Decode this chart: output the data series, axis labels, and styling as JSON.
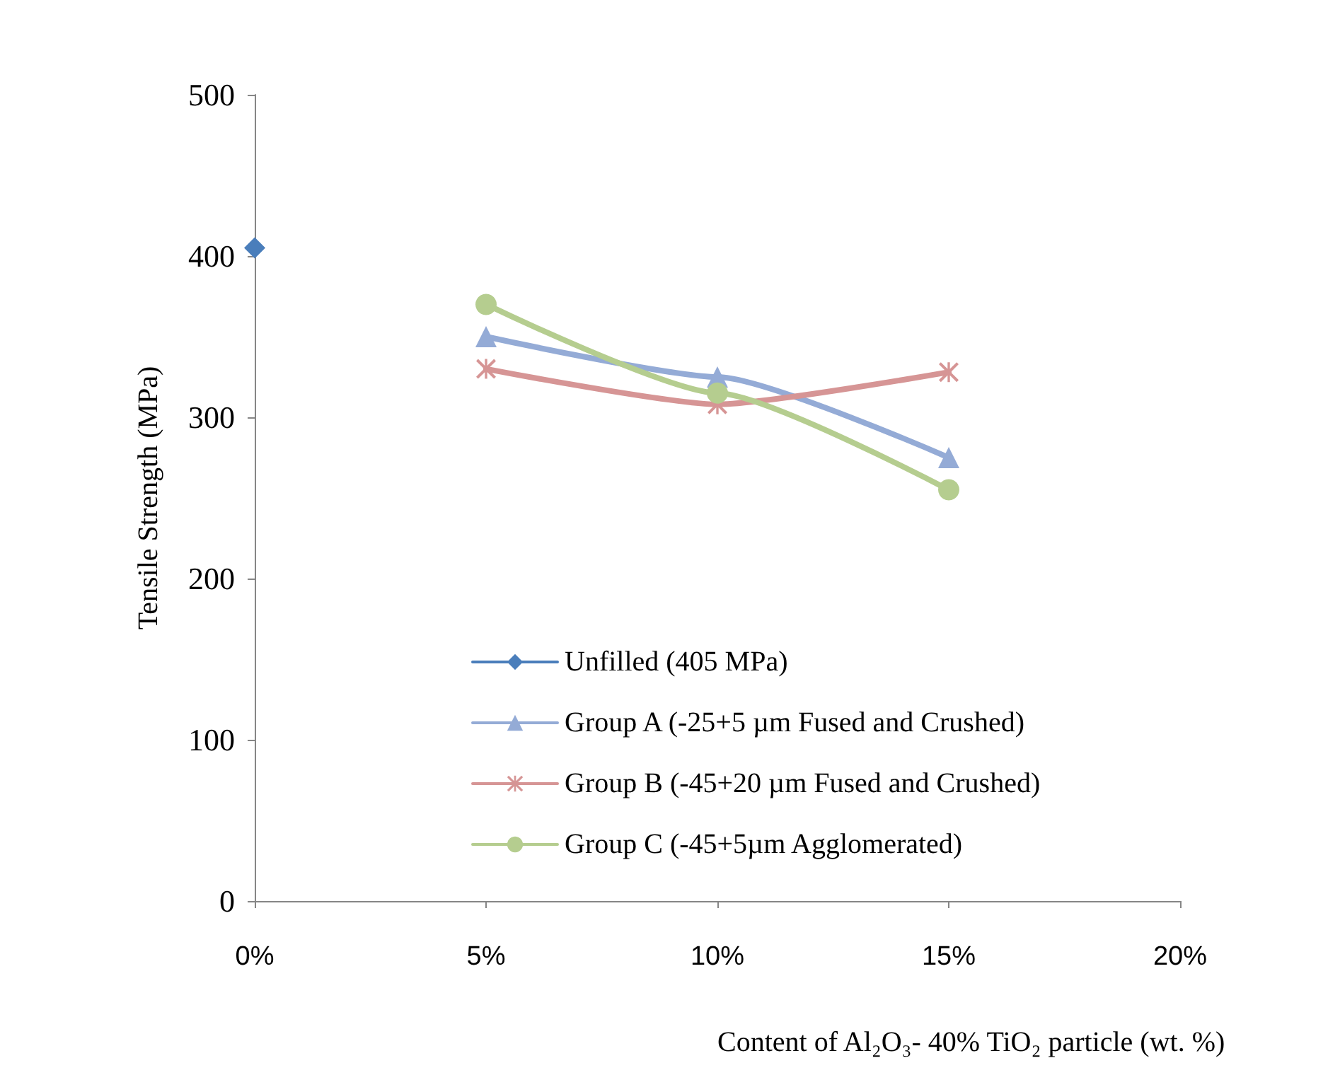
{
  "chart_data": {
    "type": "line",
    "xlabel": "Content of Al₂O₃- 40% TiO₂ particle (wt. %)",
    "ylabel": "Tensile Strength (MPa)",
    "xlim": [
      0,
      20
    ],
    "xticks": [
      {
        "value": 0,
        "label": "0%"
      },
      {
        "value": 5,
        "label": "5%"
      },
      {
        "value": 10,
        "label": "10%"
      },
      {
        "value": 15,
        "label": "15%"
      },
      {
        "value": 20,
        "label": "20%"
      }
    ],
    "ylim": [
      0,
      500
    ],
    "yticks": [
      0,
      100,
      200,
      300,
      400,
      500
    ],
    "grid": false,
    "legend": "bottom",
    "series": [
      {
        "name": "Unfilled (405 MPa)",
        "color": "#4a7ebb",
        "marker": "diamond",
        "x": [
          0
        ],
        "values": [
          405
        ]
      },
      {
        "name": "Group A (-25+5 µm Fused and Crushed)",
        "color": "#94abd6",
        "marker": "triangle",
        "x": [
          5,
          10,
          15
        ],
        "values": [
          350,
          325,
          275
        ]
      },
      {
        "name": "Group B (-45+20 µm Fused and Crushed)",
        "color": "#d69595",
        "marker": "cross",
        "x": [
          5,
          10,
          15
        ],
        "values": [
          330,
          308,
          328
        ]
      },
      {
        "name": "Group C (-45+5µm Agglomerated)",
        "color": "#b5cd8f",
        "marker": "circle",
        "x": [
          5,
          10,
          15
        ],
        "values": [
          370,
          315,
          255
        ]
      }
    ]
  }
}
